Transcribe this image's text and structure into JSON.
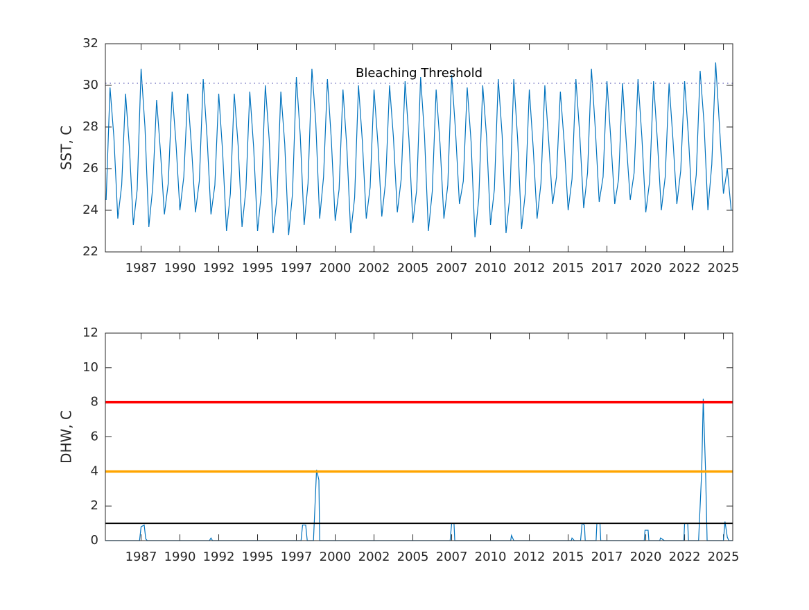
{
  "chart_data": [
    {
      "type": "line",
      "ylabel": "SST, C",
      "color": "#0072bd",
      "xlim": [
        1984.7,
        2025.1
      ],
      "ylim": [
        22,
        32
      ],
      "yticks": [
        22,
        24,
        26,
        28,
        30,
        32
      ],
      "xticks": [
        {
          "value": 1987,
          "label": "1987"
        },
        {
          "value": 1989.5,
          "label": "1990"
        },
        {
          "value": 1992,
          "label": "1992"
        },
        {
          "value": 1994.5,
          "label": "1995"
        },
        {
          "value": 1997,
          "label": "1997"
        },
        {
          "value": 1999.5,
          "label": "2000"
        },
        {
          "value": 2002,
          "label": "2002"
        },
        {
          "value": 2004.5,
          "label": "2005"
        },
        {
          "value": 2007,
          "label": "2007"
        },
        {
          "value": 2009.5,
          "label": "2010"
        },
        {
          "value": 2012,
          "label": "2012"
        },
        {
          "value": 2014.5,
          "label": "2015"
        },
        {
          "value": 2017,
          "label": "2017"
        },
        {
          "value": 2019.5,
          "label": "2020"
        },
        {
          "value": 2022,
          "label": "2022"
        },
        {
          "value": 2024.5,
          "label": "2025"
        }
      ],
      "hlines": [
        {
          "value": 30.1,
          "color": "#7b7bc4",
          "style": "dotted",
          "width": 1.5,
          "label": "Bleaching Threshold"
        }
      ],
      "x": [
        1984.75,
        1985,
        1985.25,
        1985.5,
        1985.75,
        1986,
        1986.25,
        1986.5,
        1986.75,
        1987,
        1987.25,
        1987.5,
        1987.75,
        1988,
        1988.25,
        1988.5,
        1988.75,
        1989,
        1989.25,
        1989.5,
        1989.75,
        1990,
        1990.25,
        1990.5,
        1990.75,
        1991,
        1991.25,
        1991.5,
        1991.75,
        1992,
        1992.25,
        1992.5,
        1992.75,
        1993,
        1993.25,
        1993.5,
        1993.75,
        1994,
        1994.25,
        1994.5,
        1994.75,
        1995,
        1995.25,
        1995.5,
        1995.75,
        1996,
        1996.25,
        1996.5,
        1996.75,
        1997,
        1997.25,
        1997.5,
        1997.75,
        1998,
        1998.25,
        1998.5,
        1998.75,
        1999,
        1999.25,
        1999.5,
        1999.75,
        2000,
        2000.25,
        2000.5,
        2000.75,
        2001,
        2001.25,
        2001.5,
        2001.75,
        2002,
        2002.25,
        2002.5,
        2002.75,
        2003,
        2003.25,
        2003.5,
        2003.75,
        2004,
        2004.25,
        2004.5,
        2004.75,
        2005,
        2005.25,
        2005.5,
        2005.75,
        2006,
        2006.25,
        2006.5,
        2006.75,
        2007,
        2007.25,
        2007.5,
        2007.75,
        2008,
        2008.25,
        2008.5,
        2008.75,
        2009,
        2009.25,
        2009.5,
        2009.75,
        2010,
        2010.25,
        2010.5,
        2010.75,
        2011,
        2011.25,
        2011.5,
        2011.75,
        2012,
        2012.25,
        2012.5,
        2012.75,
        2013,
        2013.25,
        2013.5,
        2013.75,
        2014,
        2014.25,
        2014.5,
        2014.75,
        2015,
        2015.25,
        2015.5,
        2015.75,
        2016,
        2016.25,
        2016.5,
        2016.75,
        2017,
        2017.25,
        2017.5,
        2017.75,
        2018,
        2018.25,
        2018.5,
        2018.75,
        2019,
        2019.25,
        2019.5,
        2019.75,
        2020,
        2020.25,
        2020.5,
        2020.75,
        2021,
        2021.25,
        2021.5,
        2021.75,
        2022,
        2022.25,
        2022.5,
        2022.75,
        2023,
        2023.25,
        2023.5,
        2023.75,
        2024,
        2024.25,
        2024.5,
        2024.75,
        2025
      ],
      "values": [
        24.5,
        29.9,
        27.5,
        23.6,
        25.2,
        29.6,
        27.0,
        23.3,
        25.0,
        30.8,
        28.0,
        23.2,
        25.1,
        29.3,
        26.8,
        23.8,
        25.3,
        29.7,
        27.2,
        24.0,
        25.6,
        29.6,
        27.0,
        23.9,
        25.4,
        30.3,
        27.5,
        23.8,
        25.2,
        29.6,
        26.8,
        23.0,
        24.8,
        29.6,
        27.1,
        23.2,
        25.0,
        29.7,
        27.0,
        23.0,
        24.9,
        30.0,
        27.4,
        22.9,
        24.6,
        29.7,
        27.2,
        22.8,
        24.8,
        30.4,
        27.6,
        23.3,
        25.3,
        30.8,
        28.2,
        23.6,
        25.6,
        30.3,
        27.4,
        23.5,
        25.0,
        29.8,
        27.0,
        22.9,
        24.6,
        30.0,
        27.3,
        23.6,
        25.1,
        29.8,
        27.2,
        23.7,
        25.4,
        30.0,
        27.5,
        23.9,
        25.5,
        30.2,
        27.4,
        23.4,
        25.0,
        30.4,
        27.6,
        23.0,
        24.9,
        29.8,
        27.2,
        23.6,
        25.2,
        30.5,
        27.8,
        24.3,
        25.4,
        29.9,
        27.3,
        22.7,
        24.6,
        30.0,
        27.5,
        23.3,
        25.0,
        30.3,
        27.6,
        22.9,
        24.7,
        30.3,
        27.4,
        23.1,
        24.9,
        29.8,
        27.0,
        23.6,
        25.3,
        30.0,
        27.3,
        24.3,
        25.6,
        29.7,
        27.2,
        24.0,
        25.5,
        30.3,
        27.6,
        24.1,
        25.8,
        30.8,
        27.9,
        24.4,
        25.6,
        30.2,
        27.4,
        24.3,
        25.5,
        30.1,
        27.2,
        24.5,
        25.8,
        30.3,
        27.5,
        23.9,
        25.4,
        30.2,
        27.3,
        24.0,
        25.6,
        30.1,
        27.4,
        24.3,
        25.9,
        30.2,
        27.5,
        24.0,
        25.7,
        30.7,
        28.2,
        24.0,
        26.2,
        31.1,
        28.0,
        24.8,
        26.0,
        24.0
      ]
    },
    {
      "type": "line",
      "ylabel": "DHW, C",
      "color": "#0072bd",
      "xlim": [
        1984.7,
        2025.1
      ],
      "ylim": [
        0,
        12
      ],
      "yticks": [
        0,
        2,
        4,
        6,
        8,
        10,
        12
      ],
      "xticks": [
        {
          "value": 1987,
          "label": "1987"
        },
        {
          "value": 1989.5,
          "label": "1990"
        },
        {
          "value": 1992,
          "label": "1992"
        },
        {
          "value": 1994.5,
          "label": "1995"
        },
        {
          "value": 1997,
          "label": "1997"
        },
        {
          "value": 1999.5,
          "label": "2000"
        },
        {
          "value": 2002,
          "label": "2002"
        },
        {
          "value": 2004.5,
          "label": "2005"
        },
        {
          "value": 2007,
          "label": "2007"
        },
        {
          "value": 2009.5,
          "label": "2010"
        },
        {
          "value": 2012,
          "label": "2012"
        },
        {
          "value": 2014.5,
          "label": "2015"
        },
        {
          "value": 2017,
          "label": "2017"
        },
        {
          "value": 2019.5,
          "label": "2020"
        },
        {
          "value": 2022,
          "label": "2022"
        },
        {
          "value": 2024.5,
          "label": "2025"
        }
      ],
      "hlines": [
        {
          "value": 1,
          "color": "#000000",
          "style": "solid",
          "width": 2
        },
        {
          "value": 4,
          "color": "#ffa500",
          "style": "solid",
          "width": 3.5
        },
        {
          "value": 8,
          "color": "#ff0000",
          "style": "solid",
          "width": 3.5
        }
      ],
      "x": [
        1984.7,
        1986.9,
        1987.0,
        1987.2,
        1987.3,
        1987.4,
        1991.4,
        1991.5,
        1991.6,
        1997.3,
        1997.4,
        1997.6,
        1997.7,
        1998.1,
        1998.3,
        1998.45,
        1998.5,
        2006.9,
        2007.0,
        2007.15,
        2007.2,
        2010.8,
        2010.85,
        2011.0,
        2014.7,
        2014.75,
        2014.9,
        2015.3,
        2015.4,
        2015.55,
        2015.6,
        2016.3,
        2016.35,
        2016.55,
        2016.6,
        2019.4,
        2019.45,
        2019.65,
        2019.7,
        2020.4,
        2020.45,
        2020.7,
        2021.95,
        2022.0,
        2022.2,
        2022.25,
        2022.9,
        2023.1,
        2023.2,
        2023.35,
        2023.45,
        2024.5,
        2024.6,
        2024.75,
        2024.85,
        2025.1
      ],
      "values": [
        0,
        0,
        0.8,
        0.9,
        0.1,
        0,
        0,
        0.15,
        0,
        0,
        0.9,
        0.9,
        0,
        0,
        4.1,
        3.5,
        0,
        0,
        1.0,
        1.0,
        0,
        0,
        0.3,
        0,
        0,
        0.15,
        0,
        0,
        1.0,
        0.9,
        0,
        0,
        1.0,
        1.0,
        0,
        0,
        0.6,
        0.6,
        0,
        0,
        0.15,
        0,
        0,
        1.0,
        1.0,
        0,
        0,
        4.0,
        8.2,
        4.0,
        0,
        0,
        1.1,
        0.2,
        0,
        0
      ]
    }
  ]
}
